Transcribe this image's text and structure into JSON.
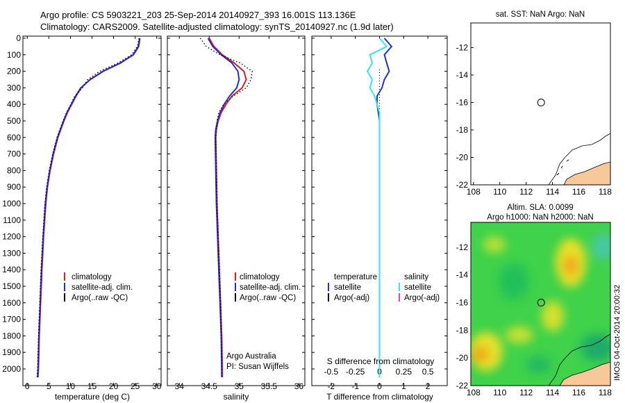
{
  "header": {
    "line1": "Argo profile: CS 5903221_203 25-Sep-2014 20140927_393 16.001S 113.136E",
    "line2": "Climatology: CARS2009. Satellite-adjusted climatology: synTS_20140927.nc (1.9d later)"
  },
  "colors": {
    "climatology": "#e41a1c",
    "satellite": "#1f2fd6",
    "argo": "#000000",
    "sal_satellite": "#33e6ee",
    "sal_argo": "#e040e0",
    "land": "#f7c99a"
  },
  "legend": {
    "climatology": "climatology",
    "satellite_adj": "satellite-adj. clim.",
    "argo_raw": "Argo(..raw -QC)",
    "diff_temp_header": "temperature",
    "diff_sal_header": "salinity",
    "diff_satellite": "satellite",
    "diff_argo": "Argo(-adj)"
  },
  "credit": {
    "line1": "Argo Australia",
    "line2": "PI: Susan Wijffels"
  },
  "side_text": "IMOS 04-Oct-2014 20:00:32",
  "chart_data": [
    {
      "type": "line",
      "name": "temperature",
      "xlabel": "temperature (deg C)",
      "ylabel": "",
      "xlim": [
        -1,
        31
      ],
      "ylim": [
        2080,
        0
      ],
      "x_ticks": [
        0,
        5,
        10,
        15,
        20,
        25,
        30
      ],
      "y_ticks": [
        0,
        100,
        200,
        300,
        400,
        500,
        600,
        700,
        800,
        900,
        1000,
        1100,
        1200,
        1300,
        1400,
        1500,
        1600,
        1700,
        1800,
        1900,
        2000
      ],
      "depth": [
        0,
        50,
        100,
        150,
        200,
        250,
        300,
        350,
        400,
        450,
        500,
        600,
        700,
        800,
        900,
        1000,
        1200,
        1400,
        1600,
        1800,
        2000,
        2050
      ],
      "series": [
        {
          "key": "climatology",
          "values": [
            26.0,
            25.7,
            24.5,
            21.5,
            17.5,
            14.5,
            12.5,
            11.3,
            10.3,
            9.3,
            8.5,
            7.1,
            6.1,
            5.3,
            4.7,
            4.3,
            3.8,
            3.4,
            3.1,
            2.8,
            2.6,
            2.5
          ]
        },
        {
          "key": "satellite",
          "values": [
            26.1,
            25.8,
            24.6,
            21.6,
            17.6,
            14.6,
            12.4,
            11.2,
            10.2,
            9.2,
            8.4,
            7.0,
            6.0,
            5.2,
            4.6,
            4.2,
            3.7,
            3.3,
            3.0,
            2.7,
            2.5,
            2.4
          ]
        },
        {
          "key": "argo",
          "values": [
            25.9,
            25.5,
            24.2,
            21.0,
            16.8,
            14.0,
            12.8,
            11.0,
            10.1,
            9.1,
            8.3,
            6.9,
            5.9,
            5.1,
            4.5,
            4.1,
            3.6,
            3.2,
            2.9,
            2.6,
            2.4,
            2.3
          ]
        }
      ]
    },
    {
      "type": "line",
      "name": "salinity",
      "xlabel": "salinity",
      "ylabel": "",
      "xlim": [
        33.8,
        36.1
      ],
      "ylim": [
        2080,
        0
      ],
      "x_ticks": [
        34,
        34.5,
        35,
        35.5,
        36
      ],
      "depth": [
        0,
        50,
        100,
        150,
        200,
        250,
        300,
        350,
        400,
        450,
        500,
        550,
        600,
        800,
        1000,
        1200,
        1400,
        1600,
        1800,
        2000,
        2050
      ],
      "series": [
        {
          "key": "climatology",
          "values": [
            34.5,
            34.58,
            34.72,
            34.92,
            35.08,
            35.12,
            35.05,
            34.88,
            34.78,
            34.7,
            34.65,
            34.62,
            34.61,
            34.62,
            34.63,
            34.65,
            34.67,
            34.69,
            34.71,
            34.72,
            34.72
          ]
        },
        {
          "key": "satellite",
          "values": [
            34.48,
            34.56,
            34.7,
            34.88,
            34.98,
            35.0,
            34.96,
            34.84,
            34.75,
            34.68,
            34.64,
            34.61,
            34.6,
            34.61,
            34.62,
            34.64,
            34.66,
            34.68,
            34.7,
            34.71,
            34.71
          ]
        },
        {
          "key": "argo",
          "values": [
            34.35,
            34.45,
            34.68,
            35.02,
            35.22,
            35.2,
            35.12,
            34.9,
            34.74,
            34.66,
            34.63,
            34.62,
            34.61,
            34.62,
            34.63,
            34.65,
            34.67,
            34.69,
            34.7,
            34.71,
            34.71
          ]
        }
      ]
    },
    {
      "type": "line",
      "name": "difference",
      "xlabel": "T difference from climatology",
      "top_label": "S difference from climatology",
      "ylabel": "",
      "xlim": [
        -2.8,
        2.8
      ],
      "ylim": [
        2080,
        0
      ],
      "x_ticks": [
        -2,
        -1,
        0,
        1,
        2
      ],
      "s_ticks": [
        {
          "pos": -2,
          "label": "-0.5"
        },
        {
          "pos": -1,
          "label": "-0.25"
        },
        {
          "pos": 0,
          "label": "0"
        },
        {
          "pos": 1,
          "label": "0.25"
        },
        {
          "pos": 2,
          "label": "0.5"
        }
      ],
      "depth": [
        0,
        50,
        100,
        150,
        200,
        250,
        300,
        350,
        400,
        450,
        500,
        700,
        1000,
        1500,
        2000,
        2050
      ],
      "series": [
        {
          "key": "satellite",
          "values": [
            0.2,
            0.5,
            0.2,
            0.3,
            0.4,
            0.2,
            0.1,
            -0.1,
            -0.1,
            -0.05,
            0.0,
            0.0,
            0.0,
            0.0,
            0.0,
            0.0
          ]
        },
        {
          "key": "sal_satellite",
          "values": [
            0.0,
            0.3,
            -0.4,
            -0.3,
            -0.5,
            -0.3,
            -0.4,
            -0.2,
            -0.1,
            0.0,
            0.0,
            0.0,
            0.0,
            0.0,
            0.0,
            0.0
          ]
        }
      ]
    },
    {
      "type": "scatter",
      "name": "sst_map",
      "title": "sat. SST: NaN Argo: NaN",
      "xlim": [
        107.8,
        118.4
      ],
      "ylim": [
        -22,
        -10.2
      ],
      "x_ticks": [
        108,
        110,
        112,
        114,
        116,
        118
      ],
      "y_ticks": [
        -12,
        -14,
        -16,
        -18,
        -20,
        -22
      ],
      "float_position": {
        "lon": 113.136,
        "lat": -16.001
      }
    },
    {
      "type": "heatmap",
      "name": "sla_map",
      "title_line1": "Altim. SLA: 0.0099",
      "title_line2": "Argo h1000: NaN h2000: NaN",
      "xlim": [
        107.8,
        118.4
      ],
      "ylim": [
        -22,
        -10.2
      ],
      "x_ticks": [
        108,
        110,
        112,
        114,
        116,
        118
      ],
      "y_ticks": [
        -12,
        -14,
        -16,
        -18,
        -20,
        -22
      ],
      "float_position": {
        "lon": 113.136,
        "lat": -16.001
      }
    }
  ]
}
